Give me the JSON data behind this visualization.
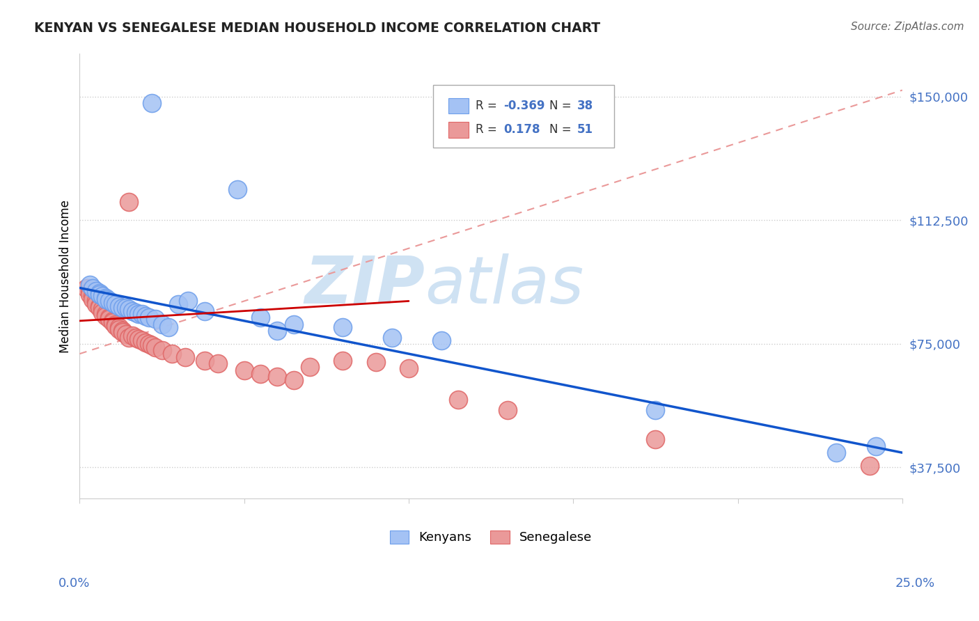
{
  "title": "KENYAN VS SENEGALESE MEDIAN HOUSEHOLD INCOME CORRELATION CHART",
  "source": "Source: ZipAtlas.com",
  "ylabel": "Median Household Income",
  "yticks": [
    37500,
    75000,
    112500,
    150000
  ],
  "ytick_labels": [
    "$37,500",
    "$75,000",
    "$112,500",
    "$150,000"
  ],
  "xlim": [
    0.0,
    0.25
  ],
  "ylim": [
    28000,
    163000
  ],
  "legend_r_blue": "-0.369",
  "legend_n_blue": "38",
  "legend_r_pink": "0.178",
  "legend_n_pink": "51",
  "blue_color": "#a4c2f4",
  "blue_edge_color": "#6d9eeb",
  "pink_color": "#ea9999",
  "pink_edge_color": "#e06666",
  "trend_blue_color": "#1155cc",
  "trend_pink_solid_color": "#cc0000",
  "trend_pink_dashed_color": "#ea9999",
  "watermark": "ZIPatlas",
  "watermark_color": "#cfe2f3",
  "label_color": "#4472c4",
  "grid_color": "#cccccc",
  "blue_scatter_x": [
    0.022,
    0.048,
    0.003,
    0.004,
    0.005,
    0.006,
    0.006,
    0.007,
    0.008,
    0.008,
    0.009,
    0.01,
    0.011,
    0.012,
    0.013,
    0.014,
    0.015,
    0.016,
    0.017,
    0.018,
    0.019,
    0.02,
    0.021,
    0.023,
    0.025,
    0.027,
    0.03,
    0.033,
    0.038,
    0.055,
    0.06,
    0.065,
    0.08,
    0.095,
    0.11,
    0.175,
    0.23,
    0.242
  ],
  "blue_scatter_y": [
    148000,
    122000,
    93000,
    92000,
    91000,
    90500,
    90000,
    89500,
    89000,
    88500,
    88000,
    87500,
    87000,
    86500,
    86000,
    86000,
    85500,
    85000,
    84500,
    84000,
    84000,
    83500,
    83000,
    82500,
    81000,
    80000,
    87000,
    88000,
    85000,
    83000,
    79000,
    81000,
    80000,
    77000,
    76000,
    55000,
    42000,
    44000
  ],
  "pink_scatter_x": [
    0.002,
    0.003,
    0.003,
    0.004,
    0.004,
    0.005,
    0.005,
    0.006,
    0.006,
    0.007,
    0.007,
    0.008,
    0.008,
    0.009,
    0.009,
    0.01,
    0.01,
    0.011,
    0.011,
    0.012,
    0.012,
    0.013,
    0.013,
    0.014,
    0.015,
    0.015,
    0.016,
    0.017,
    0.018,
    0.019,
    0.02,
    0.021,
    0.022,
    0.023,
    0.025,
    0.028,
    0.032,
    0.038,
    0.042,
    0.05,
    0.055,
    0.06,
    0.065,
    0.07,
    0.08,
    0.09,
    0.1,
    0.115,
    0.13,
    0.175,
    0.24
  ],
  "pink_scatter_y": [
    92000,
    91000,
    90000,
    89500,
    88500,
    88000,
    87000,
    86500,
    86000,
    85500,
    84500,
    84000,
    83500,
    83000,
    82500,
    82000,
    81500,
    81000,
    80500,
    80000,
    79500,
    79000,
    78500,
    78000,
    118000,
    77000,
    77500,
    77000,
    76500,
    76000,
    75500,
    75000,
    74500,
    74000,
    73000,
    72000,
    71000,
    70000,
    69000,
    67000,
    66000,
    65000,
    64000,
    68000,
    70000,
    69500,
    67500,
    58000,
    55000,
    46000,
    38000
  ],
  "blue_trendline_x": [
    0.0,
    0.25
  ],
  "blue_trendline_y": [
    92000,
    42000
  ],
  "pink_solid_trendline_x": [
    0.0,
    0.1
  ],
  "pink_solid_trendline_y": [
    82000,
    88000
  ],
  "pink_dashed_trendline_x": [
    0.0,
    0.25
  ],
  "pink_dashed_trendline_y": [
    72000,
    152000
  ]
}
